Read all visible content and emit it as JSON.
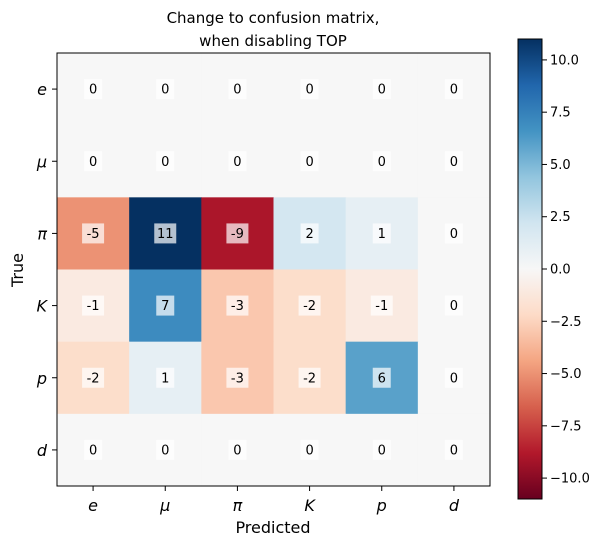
{
  "chart_data": {
    "type": "heatmap",
    "title_lines": [
      "Change to confusion matrix,",
      "when disabling TOP"
    ],
    "xlabel": "Predicted",
    "ylabel": "True",
    "x_categories": [
      "e",
      "μ",
      "π",
      "K",
      "p",
      "d"
    ],
    "y_categories": [
      "e",
      "μ",
      "π",
      "K",
      "p",
      "d"
    ],
    "values": [
      [
        0,
        0,
        0,
        0,
        0,
        0
      ],
      [
        0,
        0,
        0,
        0,
        0,
        0
      ],
      [
        -5,
        11,
        -9,
        2,
        1,
        0
      ],
      [
        -1,
        7,
        -3,
        -2,
        -1,
        0
      ],
      [
        -2,
        1,
        -3,
        -2,
        6,
        0
      ],
      [
        0,
        0,
        0,
        0,
        0,
        0
      ]
    ],
    "colormap": "RdBu",
    "vmin": -11,
    "vmax": 11,
    "colorbar_ticks": [
      10.0,
      7.5,
      5.0,
      2.5,
      0.0,
      -2.5,
      -5.0,
      -7.5,
      -10.0
    ],
    "colorbar_tick_labels": [
      "10.0",
      "7.5",
      "5.0",
      "2.5",
      "0.0",
      "−2.5",
      "−5.0",
      "−7.5",
      "−10.0"
    ]
  }
}
